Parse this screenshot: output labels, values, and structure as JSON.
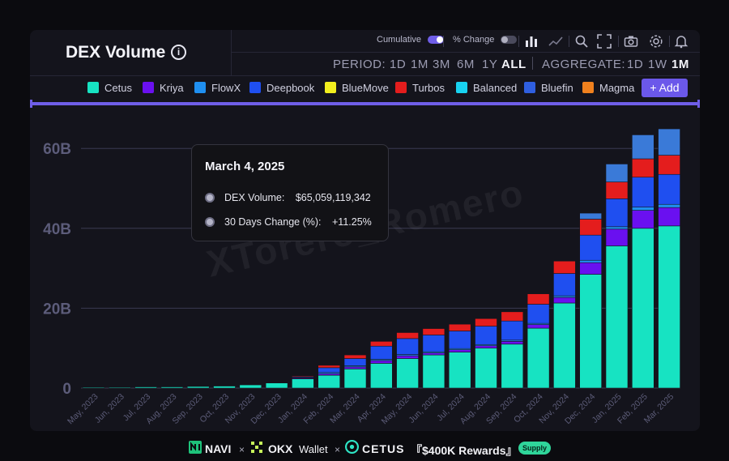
{
  "header": {
    "title": "DEX Volume",
    "info_glyph": "i"
  },
  "toolbar": {
    "cumulative_label": "Cumulative",
    "pct_change_label": "% Change",
    "icons": [
      "bar-chart-icon",
      "line-chart-icon",
      "search-icon",
      "fullscreen-icon",
      "camera-icon",
      "settings-icon",
      "notification-icon"
    ]
  },
  "period": {
    "label": "PERIOD:",
    "options": [
      "1D",
      "1M",
      "3M",
      "6M",
      "1Y",
      "ALL"
    ],
    "selected": "ALL"
  },
  "aggregate": {
    "label": "AGGREGATE:",
    "options": [
      "1D",
      "1W",
      "1M"
    ],
    "selected": "1M"
  },
  "legend": {
    "items": [
      {
        "name": "Cetus",
        "color": "#17e3c2"
      },
      {
        "name": "Kriya",
        "color": "#6a10f0"
      },
      {
        "name": "FlowX",
        "color": "#1f8ff0"
      },
      {
        "name": "Deepbook",
        "color": "#1f4ff0"
      },
      {
        "name": "BlueMove",
        "color": "#f2ef1e"
      },
      {
        "name": "Turbos",
        "color": "#e41d1d"
      },
      {
        "name": "Balanced",
        "color": "#18d2f0"
      },
      {
        "name": "Bluefin",
        "color": "#2f5fe0"
      },
      {
        "name": "Magma",
        "color": "#f0811e"
      }
    ],
    "add_label": "+ Add"
  },
  "tooltip": {
    "date": "March 4, 2025",
    "rows": [
      {
        "label": "DEX Volume:",
        "value": "$65,059,119,342"
      },
      {
        "label": "30 Days Change (%):",
        "value": "+11.25%"
      }
    ]
  },
  "watermark": "XTorero_Romero",
  "chart_data": {
    "type": "bar",
    "stacked": true,
    "categories": [
      "May, 2023",
      "Jun, 2023",
      "Jul, 2023",
      "Aug, 2023",
      "Sep, 2023",
      "Oct, 2023",
      "Nov, 2023",
      "Dec, 2023",
      "Jan, 2024",
      "Feb, 2024",
      "Mar, 2024",
      "Apr, 2024",
      "May, 2024",
      "Jun, 2024",
      "Jul, 2024",
      "Aug, 2024",
      "Sep, 2024",
      "Oct, 2024",
      "Nov, 2024",
      "Dec, 2024",
      "Jan, 2025",
      "Feb, 2025",
      "Mar, 2025"
    ],
    "y_ticks": [
      "0",
      "20B",
      "40B",
      "60B"
    ],
    "ylim": [
      0,
      68
    ],
    "y_unit": "B",
    "grid": true,
    "series": [
      {
        "name": "Cetus",
        "color": "#17e3c2",
        "values": [
          0.2,
          0.2,
          0.3,
          0.3,
          0.4,
          0.5,
          0.8,
          1.3,
          2.3,
          3.2,
          4.8,
          6.2,
          7.4,
          8.3,
          9.0,
          10.0,
          11.0,
          15.0,
          21.3,
          28.5,
          35.6,
          40.0,
          40.6
        ]
      },
      {
        "name": "Kriya",
        "color": "#6a10f0",
        "values": [
          0,
          0,
          0,
          0,
          0,
          0,
          0,
          0.1,
          0.2,
          0.4,
          0.5,
          0.7,
          0.7,
          0.5,
          0.6,
          0.6,
          0.7,
          0.9,
          1.4,
          2.9,
          4.2,
          4.5,
          4.6
        ]
      },
      {
        "name": "FlowX",
        "color": "#1f8ff0",
        "values": [
          0,
          0,
          0,
          0,
          0,
          0,
          0,
          0,
          0.1,
          0.3,
          0.3,
          0.3,
          0.3,
          0.3,
          0.3,
          0.3,
          0.3,
          0.3,
          0.4,
          0.6,
          0.6,
          0.8,
          0.8
        ]
      },
      {
        "name": "Deepbook",
        "color": "#1f4ff0",
        "values": [
          0,
          0,
          0,
          0,
          0,
          0,
          0,
          0,
          0.2,
          1.2,
          1.8,
          3.3,
          4.0,
          4.2,
          4.4,
          4.6,
          4.8,
          4.8,
          5.6,
          6.3,
          7.0,
          7.5,
          7.5
        ]
      },
      {
        "name": "Turbos",
        "color": "#e41d1d",
        "values": [
          0,
          0,
          0,
          0,
          0,
          0,
          0,
          0,
          0.2,
          0.6,
          0.9,
          1.2,
          1.5,
          1.6,
          1.7,
          1.9,
          2.3,
          2.6,
          3.1,
          4.0,
          4.2,
          4.6,
          4.8
        ]
      },
      {
        "name": "Bluefin",
        "color": "#3a7ad8",
        "values": [
          0,
          0,
          0,
          0,
          0,
          0,
          0,
          0,
          0,
          0,
          0,
          0,
          0,
          0,
          0,
          0,
          0,
          0,
          0,
          1.5,
          4.5,
          6.0,
          6.6
        ]
      }
    ]
  },
  "footer": {
    "navi": "NAVI",
    "okx": "OKX",
    "wallet": "Wallet",
    "cetus": "CETUS",
    "times": "×",
    "rewards": "『$400K Rewards』",
    "supply": "Supply"
  }
}
